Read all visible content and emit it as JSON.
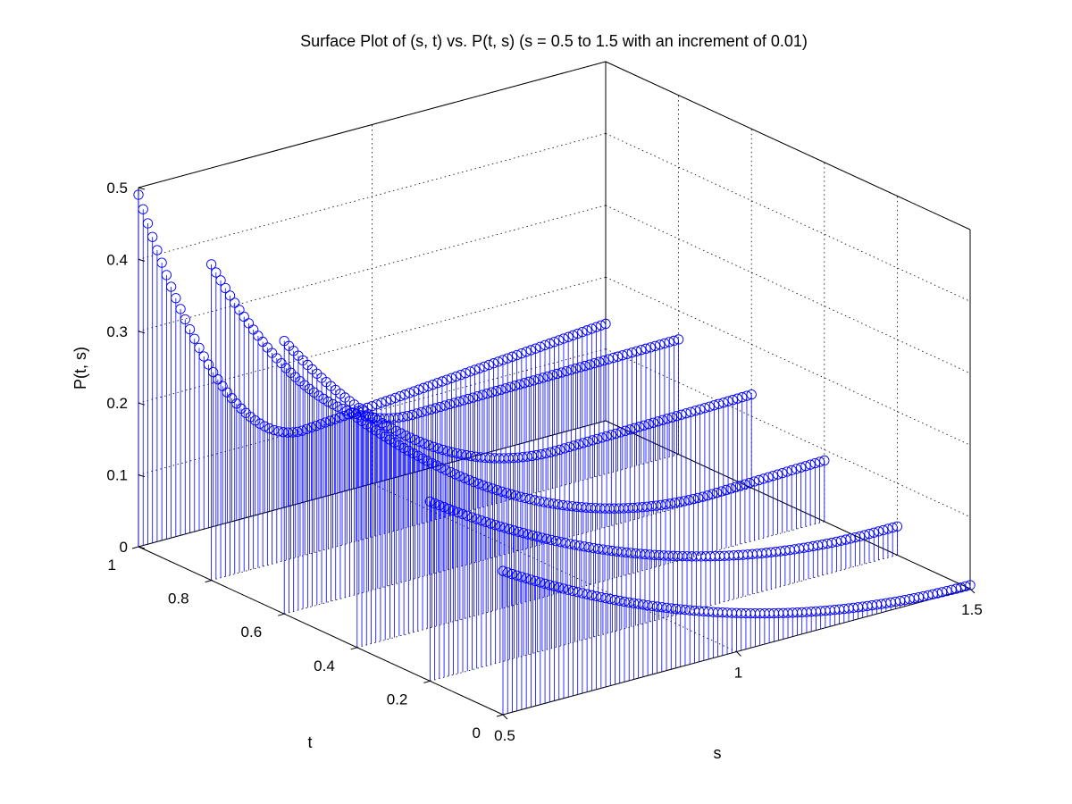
{
  "figure": {
    "background": "#ffffff",
    "stem_color": "#0000ff",
    "axes_color": "#000000"
  },
  "chart_data": {
    "type": "stem3",
    "title": "Surface Plot of (s, t) vs. P(t, s) (s = 0.5 to 1.5 with an increment of 0.01)",
    "xlabel": "s",
    "ylabel": "t",
    "zlabel": "P(t, s)",
    "xlim": [
      0.5,
      1.5
    ],
    "ylim": [
      0,
      1
    ],
    "zlim": [
      0,
      0.5
    ],
    "x_ticks": [
      "0.5",
      "1",
      "1.5"
    ],
    "y_ticks": [
      "0",
      "0.2",
      "0.4",
      "0.6",
      "0.8",
      "1"
    ],
    "z_ticks": [
      "0",
      "0.1",
      "0.2",
      "0.3",
      "0.4",
      "0.5"
    ],
    "x_tick_values": [
      0.5,
      1,
      1.5
    ],
    "y_tick_values": [
      0,
      0.2,
      0.4,
      0.6,
      0.8,
      1
    ],
    "z_tick_values": [
      0,
      0.1,
      0.2,
      0.3,
      0.4,
      0.5
    ],
    "grid": true,
    "marker": "circle",
    "s_start": 0.5,
    "s_end": 1.5,
    "s_increment": 0.01,
    "series": [
      {
        "t": 1.0,
        "P_at_s_start": 0.49,
        "P_min": 0.1,
        "s_at_min": 0.85,
        "P_at_s_end": 0.135
      },
      {
        "t": 0.8,
        "P_at_s_start": 0.44,
        "P_min": 0.155,
        "s_at_min": 0.93,
        "P_at_s_end": 0.16
      },
      {
        "t": 0.6,
        "P_at_s_start": 0.38,
        "P_min": 0.125,
        "s_at_min": 1.08,
        "P_at_s_end": 0.13
      },
      {
        "t": 0.4,
        "P_at_s_start": 0.32,
        "P_min": 0.08,
        "s_at_min": 1.25,
        "P_at_s_end": 0.085
      },
      {
        "t": 0.2,
        "P_at_s_start": 0.25,
        "P_min": 0.04,
        "s_at_min": 1.45,
        "P_at_s_end": 0.04
      },
      {
        "t": 0.0,
        "P_at_s_start": 0.2,
        "P_min": 0.005,
        "s_at_min": 1.5,
        "P_at_s_end": 0.005
      }
    ]
  }
}
